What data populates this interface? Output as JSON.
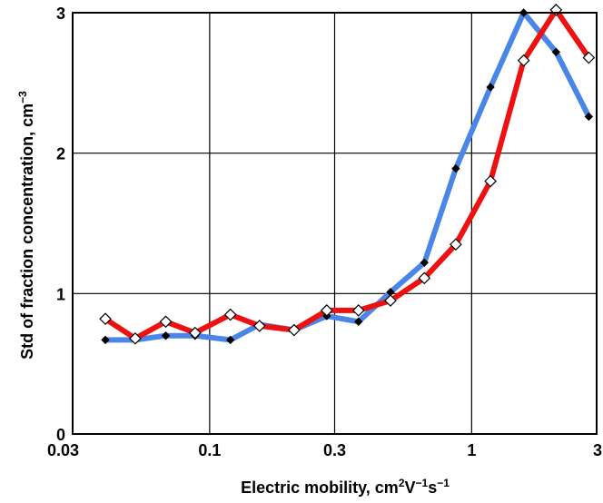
{
  "chart_data": {
    "type": "line",
    "xscale": "log",
    "xlabel": {
      "pre": "Electric mobility, cm",
      "sup1": "2",
      "mid1": "V",
      "sup2": "−1",
      "mid2": "s",
      "sup3": "−1"
    },
    "ylabel": {
      "pre": "Std of fraction concentration, cm",
      "sup": "−3"
    },
    "xlim": [
      0.03,
      3
    ],
    "ylim": [
      0,
      3
    ],
    "xticks": [
      {
        "value": 0.03,
        "label": "0.03"
      },
      {
        "value": 0.1,
        "label": "0.1"
      },
      {
        "value": 0.3,
        "label": "0.3"
      },
      {
        "value": 1,
        "label": "1"
      },
      {
        "value": 3,
        "label": "3"
      }
    ],
    "yticks": [
      {
        "value": 0,
        "label": "0"
      },
      {
        "value": 1,
        "label": "1"
      },
      {
        "value": 2,
        "label": "2"
      },
      {
        "value": 3,
        "label": "3"
      }
    ],
    "grid": true,
    "series": [
      {
        "color": "#4a86e8",
        "marker": "filled-diamond",
        "x": [
          0.04,
          0.052,
          0.068,
          0.088,
          0.12,
          0.155,
          0.21,
          0.28,
          0.37,
          0.49,
          0.66,
          0.87,
          1.18,
          1.58,
          2.1,
          2.8
        ],
        "y": [
          0.67,
          0.67,
          0.7,
          0.7,
          0.67,
          0.78,
          0.74,
          0.84,
          0.8,
          1.01,
          1.22,
          1.89,
          2.47,
          3.0,
          2.72,
          2.26
        ]
      },
      {
        "color": "#ee1111",
        "marker": "open-diamond",
        "x": [
          0.04,
          0.052,
          0.068,
          0.088,
          0.12,
          0.155,
          0.21,
          0.28,
          0.37,
          0.49,
          0.66,
          0.87,
          1.18,
          1.58,
          2.1,
          2.8
        ],
        "y": [
          0.82,
          0.68,
          0.8,
          0.72,
          0.85,
          0.77,
          0.74,
          0.88,
          0.88,
          0.95,
          1.11,
          1.35,
          1.8,
          2.66,
          3.02,
          2.68
        ]
      }
    ]
  }
}
